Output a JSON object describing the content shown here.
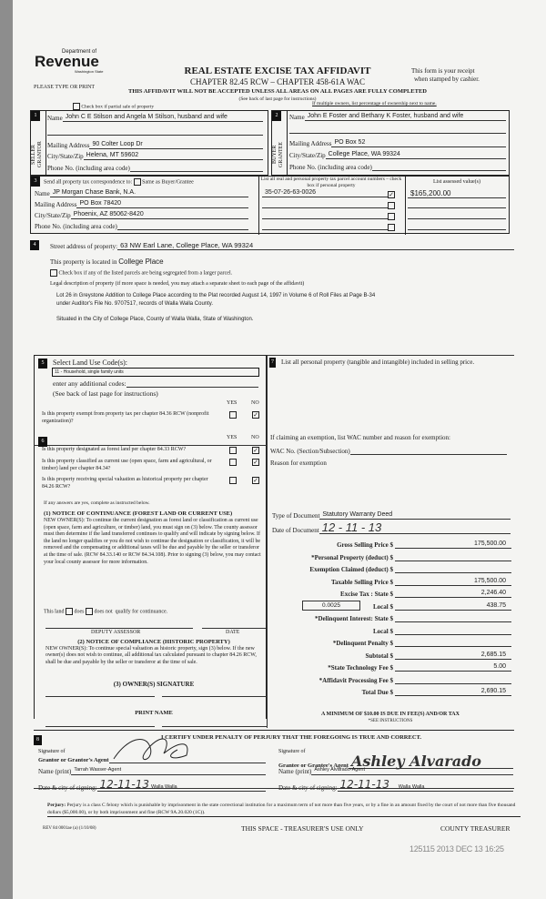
{
  "header": {
    "logo_top": "Department of",
    "logo_main": "Revenue",
    "logo_sub": "Washington State",
    "please": "PLEASE TYPE OR PRINT",
    "title": "REAL ESTATE EXCISE TAX AFFIDAVIT",
    "subtitle": "CHAPTER 82.45 RCW – CHAPTER 458-61A WAC",
    "warning": "THIS AFFIDAVIT WILL NOT BE ACCEPTED UNLESS ALL AREAS ON ALL PAGES ARE FULLY COMPLETED",
    "see_back": "(See back of last page for instructions)",
    "receipt1": "This form is your receipt",
    "receipt2": "when stamped by cashier.",
    "partial_sale": "Check box if partial sale of property",
    "multiple_owners": "If multiple owners, list percentage of ownership next to name."
  },
  "seller": {
    "num": "1",
    "side": "SELLER GRANTOR",
    "name_label": "Name",
    "name": "John C E Stilson and Angela M Stilson, husband and wife",
    "mail_label": "Mailing Address",
    "mail": "90 Colter Loop Dr",
    "city_label": "City/State/Zip",
    "city": "Helena, MT 59602",
    "phone_label": "Phone No. (including area code)"
  },
  "buyer": {
    "num": "2",
    "side": "BUYER GRANTEE",
    "name_label": "Name",
    "name": "John E Foster and Bethany K Foster, husband and wife",
    "mail_label": "Mailing Address",
    "mail": "PO Box 52",
    "city_label": "City/State/Zip",
    "city": "College Place, WA 99324",
    "phone_label": "Phone No. (including area code)"
  },
  "tax_corr": {
    "num": "3",
    "label": "Send all property tax correspondence to:",
    "same_label": "Same as Buyer/Grantee",
    "name_label": "Name",
    "name": "JP Morgan Chase Bank, N.A.",
    "mail_label": "Mailing Address",
    "mail": "PO Box 78420",
    "city_label": "City/State/Zip",
    "city": "Phoenix, AZ 85062-8420",
    "phone_label": "Phone No. (including area code)",
    "parcel_header": "List all real and personal property tax parcel account numbers – check box if personal property",
    "assessed_header": "List assessed value(s)",
    "parcels": [
      {
        "number": "35-07-26-63-0026",
        "checked": "✓",
        "value": "$165,200.00"
      },
      {
        "number": "",
        "checked": "",
        "value": ""
      },
      {
        "number": "",
        "checked": "",
        "value": ""
      },
      {
        "number": "",
        "checked": "",
        "value": ""
      }
    ]
  },
  "property": {
    "num": "4",
    "street_label": "Street address of property:",
    "street": "63 NW Earl Lane, College Place, WA 99324",
    "located_label": "This property is located in",
    "located": "College Place",
    "segregated": "Check box if any of the listed parcels are being segregated from a larger parcel.",
    "legal_label": "Legal description of property (if more space is needed, you may attach a separate sheet to each page of the affidavit)",
    "legal1": "Lot 26 in Greystone Addition to College Place according to the Plat recorded August 14, 1997 in Volume 6 of Roll Files at Page B-34",
    "legal2": "under Auditor's File No. 9707517, records of Walla Walla County.",
    "legal3": "Situated in the City of College Place, County of Walla Walla, State of Washington."
  },
  "land_use": {
    "num": "5",
    "label": "Select Land Use Code(s):",
    "code": "11 - Household, single family units",
    "additional": "enter any additional codes:",
    "see_back": "(See back of last page for instructions)",
    "yes": "YES",
    "no": "NO",
    "q_exempt": "Is this property exempt from property tax per chapter 84.36 RCW (nonprofit organization)?",
    "q_exempt_answer": "✓"
  },
  "section6": {
    "num": "6",
    "yes": "YES",
    "no": "NO",
    "questions": [
      {
        "text": "Is this property designated as forest land per chapter 84.33 RCW?",
        "no": "✓"
      },
      {
        "text": "Is this property classified as current use (open space, farm and agricultural, or timber) land per chapter 84.34?",
        "no": "✓"
      },
      {
        "text": "Is this property receiving special valuation as historical property per chapter 84.26 RCW?",
        "no": "✓"
      }
    ],
    "if_yes": "If any answers are yes, complete as instructed below.",
    "notice1_title": "(1) NOTICE OF CONTINUANCE (FOREST LAND OR CURRENT USE)",
    "notice1_body": "NEW OWNER(S): To continue the current designation as forest land or classification as current use (open space, farm and agriculture, or timber) land, you must sign on (3) below. The county assessor must then determine if the land transferred continues to qualify and will indicate by signing below. If the land no longer qualifies or you do not wish to continue the designation or classification, it will be removed and the compensating or additional taxes will be due and payable by the seller or transferor at the time of sale. (RCW 84.33.140 or RCW 84.34.108). Prior to signing (3) below, you may contact your local county assessor for more information.",
    "this_land": "This land",
    "does": "does",
    "does_not": "does not",
    "qualify": "qualify for continuance.",
    "deputy": "DEPUTY ASSESSOR",
    "date": "DATE",
    "notice2_title": "(2) NOTICE OF COMPLIANCE (HISTORIC PROPERTY)",
    "notice2_body": "NEW OWNER(S): To continue special valuation as historic property, sign (3) below. If the new owner(s) does not wish to continue, all additional tax calculated pursuant to chapter 84.26 RCW, shall be due and payable by the seller or transferor at the time of sale.",
    "owner_sig": "(3) OWNER(S) SIGNATURE",
    "print_name": "PRINT NAME"
  },
  "section7": {
    "num": "7",
    "personal_property": "List all personal property (tangible and intangible) included in selling price.",
    "exemption": "If claiming an exemption, list WAC number and reason for exemption:",
    "wac_label": "WAC No. (Section/Subsection)",
    "reason_label": "Reason for exemption",
    "doc_type_label": "Type of Document",
    "doc_type": "Statutory Warranty Deed",
    "doc_date_label": "Date of Document",
    "doc_date": "12 - 11 - 13",
    "local_rate": "0.0025",
    "lines": [
      {
        "label": "Gross Selling Price $",
        "value": "175,500.00"
      },
      {
        "label": "*Personal Property (deduct) $",
        "value": ""
      },
      {
        "label": "Exemption Claimed (deduct) $",
        "value": ""
      },
      {
        "label": "Taxable Selling Price $",
        "value": "175,500.00"
      },
      {
        "label": "Excise Tax : State $",
        "value": "2,246.40"
      },
      {
        "label": "Local $",
        "value": "438.75"
      },
      {
        "label": "*Delinquent Interest: State $",
        "value": ""
      },
      {
        "label": "Local $",
        "value": ""
      },
      {
        "label": "*Delinquent Penalty $",
        "value": ""
      },
      {
        "label": "Subtotal $",
        "value": "2,685.15"
      },
      {
        "label": "*State Technology Fee $",
        "value": "5.00"
      },
      {
        "label": "*Affidavit Processing Fee $",
        "value": ""
      },
      {
        "label": "Total Due $",
        "value": "2,690.15"
      }
    ],
    "minimum": "A MINIMUM OF $10.00 IS DUE IN FEE(S) AND/OR TAX",
    "see_instr": "*SEE INSTRUCTIONS"
  },
  "section8": {
    "num": "8",
    "certify": "I CERTIFY UNDER PENALTY OF PERJURY THAT THE FOREGOING IS TRUE AND CORRECT.",
    "sig_of": "Signature of",
    "grantor_agent": "Grantor or Grantor's Agent",
    "grantee_agent": "Grantee or Grantee's Agent",
    "name_print": "Name (print)",
    "grantor_name": "Tarrah Wasser-Agent",
    "grantee_name": "Ashley Alvarado-Agent",
    "date_city": "Date & city of signing:",
    "grantor_date": "12-11-13",
    "grantor_city": "Walla Walla",
    "grantee_date": "12-11-13",
    "grantee_city": "Walla Walla",
    "grantee_signature": "Ashley Alvarado"
  },
  "footer": {
    "perjury_label": "Perjury:",
    "perjury": "Perjury is a class C felony which is punishable by imprisonment in the state correctional institution for a maximum term of not more than five years, or by a fine in an amount fixed by the court of not more than five thousand dollars ($5,000.00), or by both imprisonment and fine (RCW 9A.20.020 (1C)).",
    "rev": "REV 84 0001ae (a) (1/10/08)",
    "treasurer_space": "THIS SPACE - TREASURER'S USE ONLY",
    "county_treasurer": "COUNTY TREASURER",
    "stamp": "125115 2013 DEC 13 16:25"
  }
}
